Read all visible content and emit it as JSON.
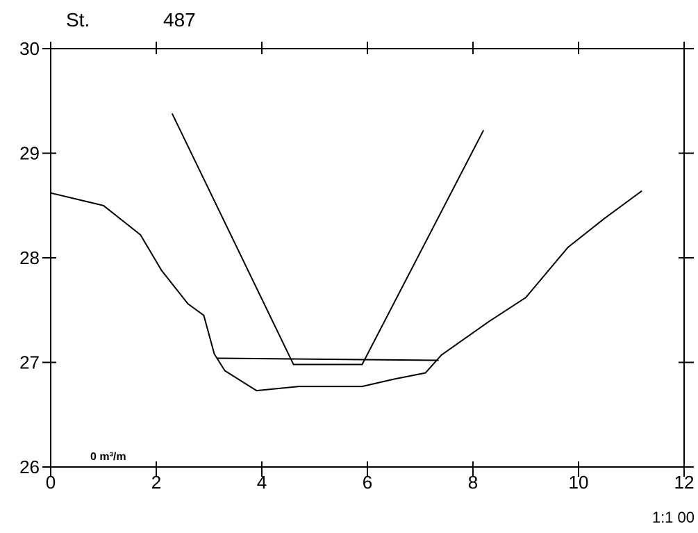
{
  "chart_data": {
    "type": "line",
    "station_label": "St.",
    "station_number": "487",
    "scale_label": "1:1 00",
    "annotation": "0 m³/m",
    "xlim": [
      0,
      12
    ],
    "ylim": [
      26,
      30
    ],
    "x_ticks": [
      0,
      2,
      4,
      6,
      8,
      10,
      12
    ],
    "x_tick_labels": [
      "0",
      "2",
      "4",
      "6",
      "8",
      "10",
      "12"
    ],
    "y_ticks": [
      26,
      27,
      28,
      29,
      30
    ],
    "y_tick_labels": [
      "26",
      "27",
      "28",
      "29",
      "30"
    ],
    "grid": false,
    "series": [
      {
        "x": [
          0,
          1.0,
          1.7,
          2.1,
          2.6,
          2.9,
          3.1,
          3.3,
          3.9,
          4.7,
          5.9,
          6.5,
          7.1,
          7.4,
          8.3,
          9.0,
          9.8,
          10.5,
          11.2
        ],
        "y": [
          28.62,
          28.5,
          28.22,
          27.88,
          27.56,
          27.45,
          27.08,
          26.92,
          26.73,
          26.77,
          26.77,
          26.84,
          26.9,
          27.07,
          27.39,
          27.62,
          28.1,
          28.38,
          28.64
        ]
      },
      {
        "x": [
          2.3,
          4.6,
          5.9,
          8.2
        ],
        "y": [
          29.38,
          26.98,
          26.98,
          29.22
        ]
      },
      {
        "x": [
          3.15,
          7.35
        ],
        "y": [
          27.04,
          27.02
        ]
      }
    ]
  }
}
